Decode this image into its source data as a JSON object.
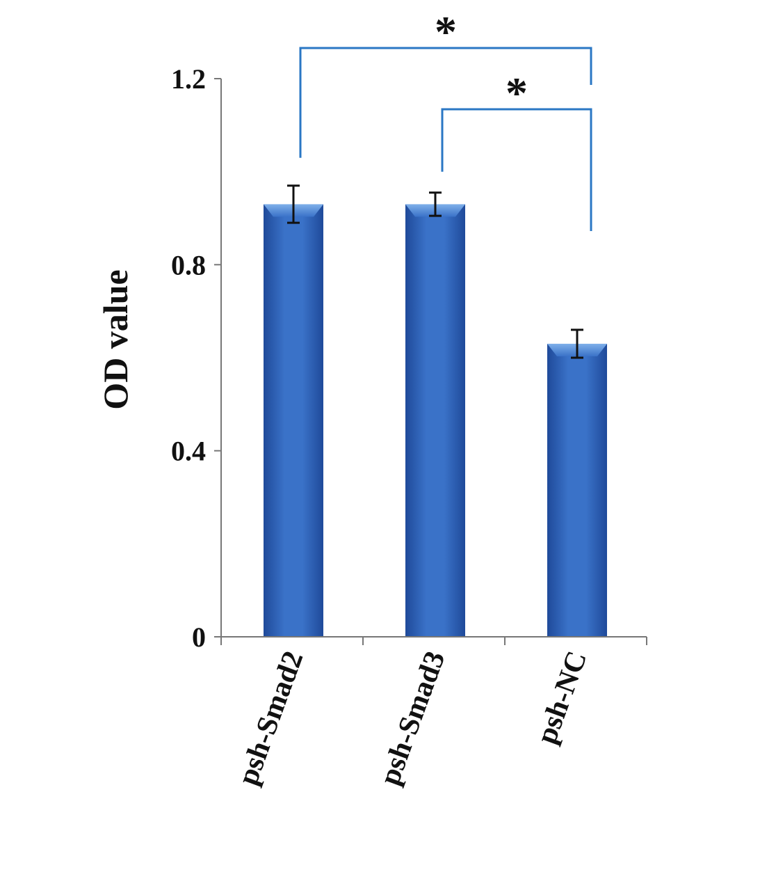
{
  "chart_data": {
    "type": "bar",
    "categories": [
      "psh-Smad2",
      "psh-Smad3",
      "psh-NC"
    ],
    "values": [
      0.93,
      0.93,
      0.63
    ],
    "errors": [
      0.04,
      0.025,
      0.03
    ],
    "ylabel": "OD value",
    "ylim": [
      0,
      1.2
    ],
    "yticks": [
      "0",
      "0.4",
      "0.8",
      "1.2"
    ],
    "grid": false,
    "bar_color": "#2f5fb3",
    "bracket_color": "#2a77c4",
    "significance": [
      {
        "from": "psh-Smad2",
        "to": "psh-NC",
        "label": "*"
      },
      {
        "from": "psh-Smad3",
        "to": "psh-NC",
        "label": "*"
      }
    ]
  }
}
